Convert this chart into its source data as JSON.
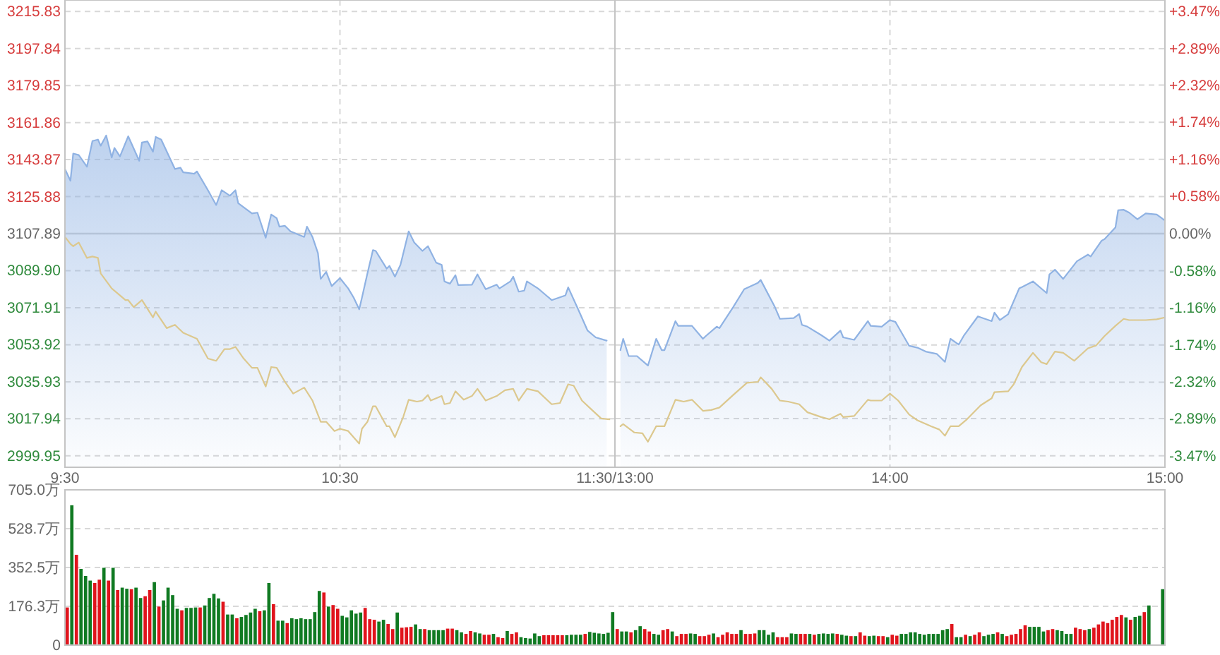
{
  "chart_data": [
    {
      "type": "area",
      "xlim": [
        9.5,
        11.5
      ],
      "ylim": [
        2994.4,
        3221.4
      ],
      "grid": true,
      "xticks": [
        {
          "value": 9.5,
          "label": "9:30"
        },
        {
          "value": 10.5,
          "label": "10:30"
        },
        {
          "value": 11.5,
          "label": "11:30/13:00"
        }
      ],
      "yticks": [
        {
          "value": 3215.83,
          "label": "3215.83"
        },
        {
          "value": 3197.84,
          "label": "3197.84"
        },
        {
          "value": 3179.85,
          "label": "3179.85"
        },
        {
          "value": 3161.86,
          "label": "3161.86"
        },
        {
          "value": 3143.87,
          "label": "3143.87"
        },
        {
          "value": 3125.88,
          "label": "3125.88"
        },
        {
          "value": 3107.89,
          "label": "3107.89"
        },
        {
          "value": 3089.9,
          "label": "3089.90"
        },
        {
          "value": 3071.91,
          "label": "3071.91"
        },
        {
          "value": 3053.92,
          "label": "3053.92"
        },
        {
          "value": 3035.93,
          "label": "3035.93"
        },
        {
          "value": 3017.94,
          "label": "3017.94"
        },
        {
          "value": 2999.95,
          "label": "2999.95"
        }
      ],
      "ref_lines": [
        {
          "axis": "y",
          "value": 3107.89,
          "color": "#d0d0d0"
        }
      ],
      "series": [
        {
          "type": "area",
          "color": "#8fb2e3",
          "x": [
            9.5,
            9.52,
            9.53,
            9.55,
            9.58,
            9.6,
            9.62,
            9.63,
            9.65,
            9.67,
            9.68,
            9.7,
            9.73,
            9.77,
            9.78,
            9.8,
            9.82,
            9.83,
            9.85,
            9.9,
            9.92,
            9.93,
            9.97,
            9.98,
            10.02,
            10.05,
            10.07,
            10.1,
            10.12,
            10.13,
            10.18,
            10.2,
            10.23,
            10.25,
            10.27,
            10.28,
            10.3,
            10.32,
            10.37,
            10.38,
            10.4,
            10.42,
            10.43,
            10.45,
            10.47,
            10.5,
            10.53,
            10.55,
            10.57,
            10.58,
            10.6,
            10.62,
            10.63,
            10.67,
            10.68,
            10.7,
            10.72,
            10.75,
            10.77,
            10.8,
            10.82,
            10.85,
            10.87,
            10.88,
            10.9,
            10.92,
            10.93,
            10.98,
            11.0,
            11.03,
            11.07,
            11.08,
            11.12,
            11.13,
            11.15,
            11.17,
            11.18,
            11.22,
            11.25,
            11.27,
            11.32,
            11.33,
            11.37,
            11.4,
            11.43,
            11.47
          ],
          "values": [
            3139.3,
            3133.6,
            3146.8,
            3146.1,
            3140.4,
            3152.9,
            3153.6,
            3150.6,
            3155.6,
            3144.9,
            3149.5,
            3145.4,
            3155.2,
            3143.3,
            3152.2,
            3152.7,
            3147.7,
            3154.9,
            3153.6,
            3139.3,
            3139.9,
            3137.7,
            3137.0,
            3138.1,
            3129.0,
            3121.8,
            3129.0,
            3126.3,
            3129.0,
            3122.7,
            3117.7,
            3118.1,
            3105.9,
            3117.2,
            3115.4,
            3111.3,
            3111.7,
            3109.0,
            3106.3,
            3111.3,
            3106.3,
            3098.4,
            3085.9,
            3089.3,
            3082.4,
            3086.3,
            3081.3,
            3076.8,
            3071.1,
            3076.8,
            3088.6,
            3099.9,
            3099.5,
            3090.9,
            3092.2,
            3087.0,
            3092.7,
            3109.0,
            3103.6,
            3099.5,
            3101.8,
            3093.8,
            3092.7,
            3084.7,
            3083.6,
            3087.7,
            3082.9,
            3083.1,
            3088.1,
            3080.9,
            3083.1,
            3081.3,
            3084.7,
            3087.0,
            3079.7,
            3080.2,
            3084.7,
            3081.3,
            3077.9,
            3075.6,
            3077.9,
            3081.8,
            3070.0,
            3060.9,
            3057.5,
            3055.9
          ]
        },
        {
          "type": "line",
          "color": "#dcc88e",
          "x": [
            9.5,
            9.52,
            9.53,
            9.55,
            9.58,
            9.6,
            9.62,
            9.63,
            9.67,
            9.68,
            9.72,
            9.73,
            9.75,
            9.78,
            9.82,
            9.83,
            9.87,
            9.9,
            9.93,
            9.98,
            10.02,
            10.05,
            10.08,
            10.1,
            10.12,
            10.15,
            10.18,
            10.2,
            10.23,
            10.25,
            10.27,
            10.3,
            10.33,
            10.37,
            10.4,
            10.43,
            10.45,
            10.48,
            10.5,
            10.53,
            10.57,
            10.58,
            10.6,
            10.62,
            10.63,
            10.67,
            10.68,
            10.7,
            10.73,
            10.75,
            10.78,
            10.8,
            10.82,
            10.83,
            10.87,
            10.88,
            10.9,
            10.92,
            10.95,
            10.98,
            11.0,
            11.03,
            11.07,
            11.1,
            11.13,
            11.15,
            11.18,
            11.22,
            11.27,
            11.3,
            11.33,
            11.35,
            11.38,
            11.42,
            11.45,
            11.48
          ],
          "values": [
            3106.3,
            3102.9,
            3101.8,
            3103.6,
            3096.1,
            3096.8,
            3096.1,
            3088.6,
            3081.3,
            3080.2,
            3075.6,
            3075.6,
            3072.2,
            3075.6,
            3067.2,
            3070.0,
            3062.0,
            3063.6,
            3059.7,
            3056.8,
            3047.2,
            3046.1,
            3051.8,
            3051.8,
            3052.9,
            3047.2,
            3042.7,
            3042.7,
            3033.6,
            3043.1,
            3042.7,
            3035.9,
            3030.2,
            3033.1,
            3026.8,
            3016.5,
            3016.5,
            3012.0,
            3013.1,
            3012.0,
            3005.9,
            3013.1,
            3016.5,
            3024.0,
            3024.0,
            3014.3,
            3014.3,
            3009.0,
            3018.8,
            3027.2,
            3026.3,
            3026.8,
            3029.5,
            3026.8,
            3029.0,
            3025.0,
            3025.6,
            3031.3,
            3027.2,
            3029.0,
            3032.5,
            3026.8,
            3029.0,
            3031.8,
            3032.5,
            3026.8,
            3032.5,
            3031.3,
            3025.0,
            3025.6,
            3034.7,
            3034.0,
            3026.8,
            3021.8,
            3018.1,
            3017.7
          ]
        }
      ]
    },
    {
      "type": "area",
      "xlim": [
        13,
        15
      ],
      "ylim": [
        2994.4,
        3221.4
      ],
      "y2lim": [
        -3.65,
        3.65
      ],
      "grid": true,
      "xticks": [
        {
          "value": 14,
          "label": "14:00"
        },
        {
          "value": 15,
          "label": "15:00"
        }
      ],
      "y2ticks": [
        {
          "value": 3.47,
          "label": "+3.47%"
        },
        {
          "value": 2.89,
          "label": "+2.89%"
        },
        {
          "value": 2.32,
          "label": "+2.32%"
        },
        {
          "value": 1.74,
          "label": "+1.74%"
        },
        {
          "value": 1.16,
          "label": "+1.16%"
        },
        {
          "value": 0.58,
          "label": "+0.58%"
        },
        {
          "value": 0,
          "label": "0.00%"
        },
        {
          "value": -0.58,
          "label": "-0.58%"
        },
        {
          "value": -1.16,
          "label": "-1.16%"
        },
        {
          "value": -1.74,
          "label": "-1.74%"
        },
        {
          "value": -2.32,
          "label": "-2.32%"
        },
        {
          "value": -2.89,
          "label": "-2.89%"
        },
        {
          "value": -3.47,
          "label": "-3.47%"
        }
      ],
      "ref_lines": [
        {
          "axis": "y",
          "value": 3107.89,
          "color": "#d0d0d0"
        }
      ],
      "series": [
        {
          "type": "area",
          "color": "#8fb2e3",
          "x": [
            13.02,
            13.03,
            13.05,
            13.08,
            13.12,
            13.15,
            13.17,
            13.18,
            13.22,
            13.23,
            13.28,
            13.32,
            13.33,
            13.37,
            13.38,
            13.43,
            13.47,
            13.52,
            13.53,
            13.58,
            13.6,
            13.65,
            13.67,
            13.68,
            13.7,
            13.75,
            13.78,
            13.82,
            13.83,
            13.87,
            13.92,
            13.93,
            13.97,
            14.0,
            14.02,
            14.07,
            14.1,
            14.13,
            14.17,
            14.2,
            14.22,
            14.25,
            14.27,
            14.32,
            14.37,
            14.38,
            14.4,
            14.43,
            14.47,
            14.48,
            14.52,
            14.57,
            14.58,
            14.6,
            14.63,
            14.68,
            14.72,
            14.73,
            14.77,
            14.78,
            14.82,
            14.83,
            14.85,
            14.87,
            14.9,
            14.93,
            14.97,
            15.0
          ],
          "values": [
            3051.3,
            3056.8,
            3048.4,
            3048.4,
            3043.8,
            3056.8,
            3051.3,
            3051.3,
            3065.4,
            3063.1,
            3063.1,
            3056.8,
            3058.1,
            3062.7,
            3062.0,
            3072.2,
            3080.9,
            3084.0,
            3085.4,
            3072.7,
            3066.5,
            3066.9,
            3068.8,
            3063.6,
            3062.7,
            3058.6,
            3055.9,
            3060.8,
            3057.5,
            3056.3,
            3065.4,
            3063.1,
            3062.7,
            3065.9,
            3065.0,
            3053.4,
            3052.5,
            3050.6,
            3049.5,
            3045.6,
            3056.8,
            3054.0,
            3058.6,
            3067.7,
            3065.4,
            3069.5,
            3065.9,
            3068.8,
            3081.3,
            3081.9,
            3084.7,
            3079.0,
            3088.1,
            3090.4,
            3085.9,
            3094.5,
            3097.7,
            3096.8,
            3104.5,
            3105.2,
            3110.9,
            3119.3,
            3119.5,
            3118.1,
            3114.9,
            3117.7,
            3117.2,
            3114.3
          ]
        },
        {
          "type": "line",
          "color": "#dcc88e",
          "x": [
            13.02,
            13.03,
            13.07,
            13.1,
            13.12,
            13.15,
            13.18,
            13.22,
            13.25,
            13.28,
            13.32,
            13.35,
            13.38,
            13.43,
            13.48,
            13.52,
            13.53,
            13.57,
            13.6,
            13.63,
            13.67,
            13.7,
            13.75,
            13.78,
            13.82,
            13.83,
            13.87,
            13.92,
            13.93,
            13.97,
            14.0,
            14.03,
            14.07,
            14.1,
            14.15,
            14.18,
            14.2,
            14.22,
            14.25,
            14.28,
            14.33,
            14.37,
            14.38,
            14.43,
            14.45,
            14.48,
            14.52,
            14.55,
            14.57,
            14.6,
            14.63,
            14.67,
            14.72,
            14.75,
            14.78,
            14.82,
            14.85,
            14.87,
            14.93,
            14.97,
            15.0
          ],
          "values": [
            3014.3,
            3015.4,
            3011.3,
            3010.9,
            3006.8,
            3014.3,
            3014.3,
            3027.2,
            3026.3,
            3027.2,
            3021.8,
            3022.2,
            3023.4,
            3029.5,
            3035.4,
            3035.9,
            3038.1,
            3032.5,
            3026.8,
            3026.3,
            3025.0,
            3021.1,
            3018.8,
            3017.7,
            3020.4,
            3018.8,
            3019.3,
            3027.2,
            3026.8,
            3026.8,
            3030.2,
            3026.8,
            3020.0,
            3017.2,
            3014.3,
            3012.7,
            3009.7,
            3014.3,
            3014.3,
            3017.7,
            3024.5,
            3027.9,
            3030.9,
            3031.3,
            3034.7,
            3043.1,
            3050.0,
            3045.4,
            3044.5,
            3050.6,
            3050.0,
            3046.1,
            3052.2,
            3053.6,
            3058.1,
            3063.1,
            3066.5,
            3065.9,
            3065.9,
            3066.3,
            3067.2
          ]
        }
      ]
    },
    {
      "type": "bar",
      "ylim": [
        0,
        705
      ],
      "grid": "y",
      "tick_labels": "y",
      "yticks": [
        {
          "value": 0,
          "label": "0"
        },
        {
          "value": 176.3,
          "label": "176.3万"
        },
        {
          "value": 352.5,
          "label": "352.5万"
        },
        {
          "value": 528.7,
          "label": "528.7万"
        },
        {
          "value": 705.0,
          "label": "705.0万"
        }
      ],
      "categories": [
        null,
        null,
        null,
        null,
        null,
        null,
        null,
        null,
        null,
        null,
        null,
        null,
        null,
        null,
        null,
        null,
        null,
        null,
        null,
        null,
        null,
        null,
        null,
        null,
        null,
        null,
        null,
        null,
        null,
        null,
        null,
        null,
        null,
        null,
        null,
        null,
        null,
        null,
        null,
        null,
        null,
        null,
        null,
        null,
        null,
        null,
        null,
        null,
        null,
        null,
        null,
        null,
        null,
        null,
        null,
        null,
        null,
        null,
        null,
        null,
        null,
        null,
        null,
        null,
        null,
        null,
        null,
        null,
        null,
        null,
        null,
        null,
        null,
        null,
        null,
        null,
        null,
        null,
        null,
        null,
        null,
        null,
        null,
        null,
        null,
        null,
        null,
        null,
        null,
        null,
        null,
        null,
        null,
        null,
        null,
        null,
        null,
        null,
        null,
        null,
        null,
        null,
        null,
        null,
        null,
        null,
        null,
        null,
        null,
        null,
        null,
        null,
        null,
        null,
        null,
        null,
        null,
        null,
        null,
        null,
        null,
        null,
        null,
        null,
        null,
        null,
        null,
        null,
        null,
        null,
        null,
        null,
        null,
        null,
        null,
        null,
        null,
        null,
        null,
        null,
        null,
        null,
        null,
        null,
        null,
        null,
        null,
        null,
        null,
        null,
        null,
        null,
        null,
        null,
        null,
        null,
        null,
        null,
        null,
        null,
        null,
        null,
        null,
        null,
        null,
        null,
        null,
        null,
        null,
        null,
        null,
        null,
        null,
        null,
        null,
        null,
        null,
        null,
        null,
        null,
        null,
        null,
        null,
        null,
        null,
        null,
        null,
        null,
        null,
        null,
        null,
        null,
        null,
        null,
        null,
        null,
        null,
        null,
        null,
        null,
        null,
        null,
        null,
        null,
        null,
        null,
        null,
        null,
        null,
        null,
        null,
        null,
        null,
        null,
        null,
        null,
        null,
        null,
        null,
        null,
        null,
        null,
        null,
        null,
        null,
        null,
        null,
        null,
        null,
        null,
        null,
        null,
        null,
        null,
        null,
        null,
        null,
        null,
        null,
        null
      ],
      "values": [
        171,
        635,
        410,
        346,
        314,
        293,
        282,
        297,
        351,
        293,
        351,
        250,
        261,
        256,
        254,
        261,
        214,
        222,
        250,
        286,
        175,
        203,
        261,
        227,
        165,
        158,
        169,
        169,
        171,
        171,
        180,
        214,
        233,
        212,
        197,
        139,
        139,
        122,
        128,
        137,
        148,
        165,
        154,
        158,
        282,
        186,
        111,
        111,
        100,
        122,
        118,
        122,
        118,
        118,
        150,
        246,
        239,
        175,
        182,
        165,
        133,
        126,
        158,
        143,
        148,
        169,
        118,
        115,
        107,
        115,
        96,
        73,
        148,
        79,
        81,
        83,
        94,
        73,
        73,
        68,
        68,
        68,
        68,
        75,
        75,
        68,
        58,
        51,
        64,
        58,
        53,
        47,
        47,
        51,
        36,
        32,
        64,
        51,
        58,
        36,
        32,
        30,
        53,
        41,
        45,
        45,
        45,
        45,
        45,
        45,
        47,
        47,
        47,
        51,
        60,
        56,
        53,
        51,
        56,
        150,
        73,
        62,
        62,
        58,
        68,
        86,
        73,
        62,
        51,
        47,
        68,
        73,
        62,
        41,
        51,
        51,
        53,
        51,
        41,
        41,
        47,
        53,
        36,
        47,
        58,
        51,
        51,
        68,
        51,
        51,
        53,
        68,
        68,
        47,
        58,
        36,
        36,
        36,
        53,
        51,
        51,
        51,
        51,
        47,
        51,
        53,
        51,
        53,
        51,
        47,
        43,
        41,
        41,
        58,
        43,
        41,
        43,
        41,
        41,
        36,
        47,
        43,
        51,
        51,
        58,
        58,
        51,
        47,
        51,
        51,
        51,
        68,
        73,
        96,
        36,
        36,
        47,
        41,
        47,
        58,
        41,
        47,
        51,
        58,
        51,
        41,
        47,
        51,
        73,
        90,
        83,
        83,
        83,
        62,
        68,
        73,
        68,
        64,
        51,
        51,
        79,
        73,
        68,
        73,
        79,
        94,
        107,
        100,
        115,
        128,
        137,
        126,
        115,
        128,
        133,
        150,
        180,
        null,
        null,
        254
      ],
      "colors": [
        "#e0141c",
        "#107a22",
        "#e0141c",
        "#107a22",
        "#107a22",
        "#107a22",
        "#e0141c",
        "#e0141c",
        "#107a22",
        "#e0141c",
        "#107a22",
        "#e0141c",
        "#107a22",
        "#107a22",
        "#e0141c",
        "#107a22",
        "#107a22",
        "#e0141c",
        "#e0141c",
        "#107a22",
        "#e0141c",
        "#107a22",
        "#107a22",
        "#107a22",
        "#107a22",
        "#e0141c",
        "#107a22",
        "#107a22",
        "#107a22",
        "#e0141c",
        "#107a22",
        "#107a22",
        "#107a22",
        "#107a22",
        "#e0141c",
        "#107a22",
        "#107a22",
        "#e0141c",
        "#107a22",
        "#107a22",
        "#107a22",
        "#107a22",
        "#e0141c",
        "#107a22",
        "#107a22",
        "#e0141c",
        "#107a22",
        "#107a22",
        "#e0141c",
        "#107a22",
        "#107a22",
        "#107a22",
        "#107a22",
        "#107a22",
        "#107a22",
        "#107a22",
        "#e0141c",
        "#107a22",
        "#e0141c",
        "#e0141c",
        "#107a22",
        "#107a22",
        "#107a22",
        "#107a22",
        "#107a22",
        "#e0141c",
        "#e0141c",
        "#e0141c",
        "#107a22",
        "#107a22",
        "#e0141c",
        "#e0141c",
        "#107a22",
        "#e0141c",
        "#e0141c",
        "#e0141c",
        "#107a22",
        "#107a22",
        "#e0141c",
        "#107a22",
        "#107a22",
        "#107a22",
        "#107a22",
        "#e0141c",
        "#e0141c",
        "#107a22",
        "#107a22",
        "#e0141c",
        "#e0141c",
        "#107a22",
        "#107a22",
        "#e0141c",
        "#e0141c",
        "#107a22",
        "#e0141c",
        "#e0141c",
        "#107a22",
        "#e0141c",
        "#e0141c",
        "#107a22",
        "#107a22",
        "#107a22",
        "#107a22",
        "#107a22",
        "#e0141c",
        "#e0141c",
        "#e0141c",
        "#e0141c",
        "#e0141c",
        "#107a22",
        "#107a22",
        "#107a22",
        "#107a22",
        "#e0141c",
        "#107a22",
        "#107a22",
        "#107a22",
        "#107a22",
        "#107a22",
        "#107a22",
        "#e0141c",
        "#107a22",
        "#107a22",
        "#e0141c",
        "#107a22",
        "#107a22",
        "#e0141c",
        "#e0141c",
        "#107a22",
        "#107a22",
        "#e0141c",
        "#e0141c",
        "#107a22",
        "#e0141c",
        "#e0141c",
        "#e0141c",
        "#107a22",
        "#107a22",
        "#e0141c",
        "#e0141c",
        "#e0141c",
        "#107a22",
        "#e0141c",
        "#e0141c",
        "#e0141c",
        "#e0141c",
        "#e0141c",
        "#107a22",
        "#e0141c",
        "#e0141c",
        "#e0141c",
        "#107a22",
        "#107a22",
        "#107a22",
        "#107a22",
        "#e0141c",
        "#e0141c",
        "#e0141c",
        "#107a22",
        "#107a22",
        "#e0141c",
        "#e0141c",
        "#107a22",
        "#e0141c",
        "#107a22",
        "#107a22",
        "#107a22",
        "#107a22",
        "#e0141c",
        "#107a22",
        "#107a22",
        "#e0141c",
        "#107a22",
        "#e0141c",
        "#e0141c",
        "#107a22",
        "#107a22",
        "#e0141c",
        "#e0141c",
        "#107a22",
        "#e0141c",
        "#e0141c",
        "#107a22",
        "#107a22",
        "#107a22",
        "#107a22",
        "#107a22",
        "#107a22",
        "#107a22",
        "#107a22",
        "#107a22",
        "#107a22",
        "#107a22",
        "#e0141c",
        "#107a22",
        "#107a22",
        "#e0141c",
        "#107a22",
        "#e0141c",
        "#e0141c",
        "#107a22",
        "#107a22",
        "#107a22",
        "#e0141c",
        "#107a22",
        "#e0141c",
        "#e0141c",
        "#e0141c",
        "#e0141c",
        "#e0141c",
        "#107a22",
        "#107a22",
        "#107a22",
        "#107a22",
        "#e0141c",
        "#e0141c",
        "#107a22",
        "#107a22",
        "#107a22",
        "#107a22",
        "#e0141c",
        "#e0141c",
        "#e0141c",
        "#107a22",
        "#e0141c",
        "#e0141c",
        "#e0141c",
        "#e0141c",
        "#e0141c",
        "#e0141c",
        "#e0141c",
        "#107a22",
        "#e0141c",
        "#107a22",
        "#107a22",
        "#e0141c",
        "#107a22",
        "#107a22",
        "#107a22",
        "#107a22"
      ]
    }
  ]
}
